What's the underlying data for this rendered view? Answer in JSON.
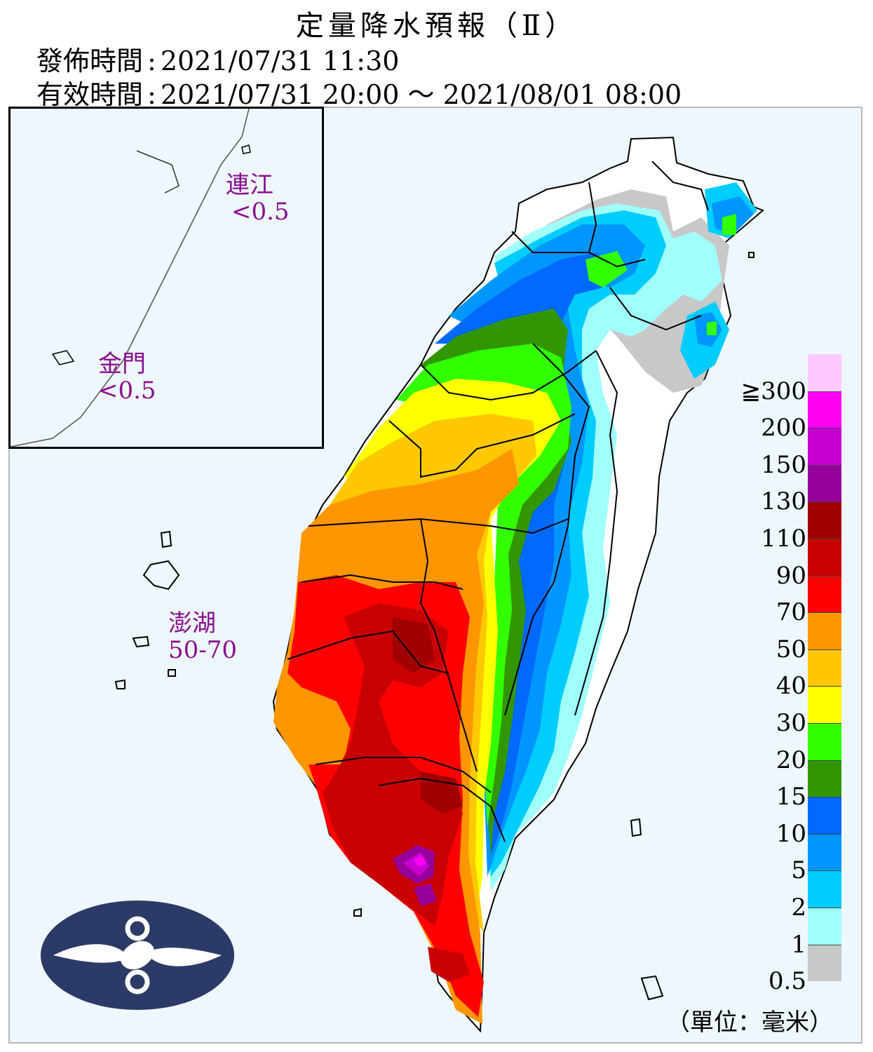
{
  "title": "定量降水預報（Ⅱ）",
  "issued": {
    "label": "發佈時間",
    "value": "2021/07/31 11:30"
  },
  "valid": {
    "label": "有效時間",
    "value": "2021/07/31 20:00 ～ 2021/08/01 08:00"
  },
  "regions": {
    "lienchiang": {
      "name": "連江",
      "value": "<0.5"
    },
    "kinmen": {
      "name": "金門",
      "value": "<0.5"
    },
    "penghu": {
      "name": "澎湖",
      "value": "50-70"
    }
  },
  "legend": {
    "bins": [
      {
        "lower": "0.5",
        "color": "#c8c8c8"
      },
      {
        "lower": "1",
        "color": "#a0fffa"
      },
      {
        "lower": "2",
        "color": "#00cdff"
      },
      {
        "lower": "5",
        "color": "#0096ff"
      },
      {
        "lower": "10",
        "color": "#0069ff"
      },
      {
        "lower": "15",
        "color": "#329600"
      },
      {
        "lower": "20",
        "color": "#32ff00"
      },
      {
        "lower": "30",
        "color": "#ffff00"
      },
      {
        "lower": "40",
        "color": "#ffc800"
      },
      {
        "lower": "50",
        "color": "#ff9600"
      },
      {
        "lower": "70",
        "color": "#ff0000"
      },
      {
        "lower": "90",
        "color": "#c80000"
      },
      {
        "lower": "110",
        "color": "#a00000"
      },
      {
        "lower": "130",
        "color": "#96009b"
      },
      {
        "lower": "150",
        "color": "#c800d2"
      },
      {
        "lower": "200",
        "color": "#ff00f5"
      },
      {
        "lower": "≧300",
        "color": "#ffc8ff"
      }
    ],
    "unit": "（單位：毫米）"
  },
  "colors": {
    "land_outline": "#000000",
    "sea": "#eef7fd",
    "region_label": "#8b0f8f",
    "logo": "#2b3a67"
  }
}
